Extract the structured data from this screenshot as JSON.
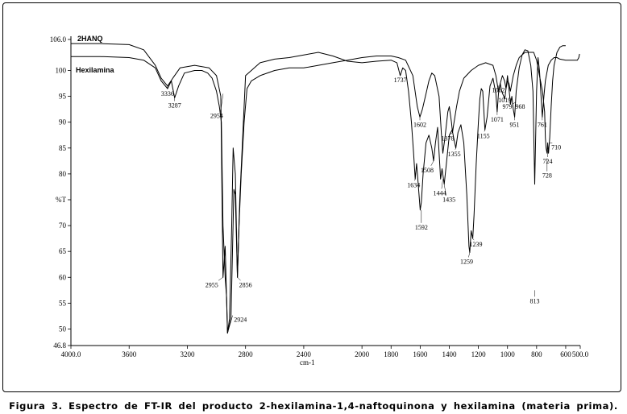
{
  "caption": "Figura 3. Espectro de FT-IR del producto 2-hexilamina-1,4-naftoquinona y hexilamina (materia prima).",
  "chart_data": {
    "type": "line",
    "xlabel": "cm-1",
    "ylabel": "%T",
    "xlim": [
      4000.0,
      500.0
    ],
    "ylim": [
      46.8,
      106.0
    ],
    "x_reversed": true,
    "grid": false,
    "x_tick_labels": [
      "4000.0",
      "3600",
      "3200",
      "2800",
      "2400",
      "2000",
      "1800",
      "1600",
      "1400",
      "1200",
      "1000",
      "800",
      "600",
      "500.0"
    ],
    "x_tick_values": [
      4000,
      3600,
      3200,
      2800,
      2400,
      2000,
      1800,
      1600,
      1400,
      1200,
      1000,
      800,
      600,
      500
    ],
    "y_tick_labels": [
      "106.0",
      "100",
      "95",
      "90",
      "85",
      "80",
      "%T",
      "70",
      "65",
      "60",
      "55",
      "50",
      "46.8"
    ],
    "y_tick_values": [
      106,
      100,
      95,
      90,
      85,
      80,
      75,
      70,
      65,
      60,
      55,
      50,
      46.8
    ],
    "series": [
      {
        "name": "2HANQ",
        "color": "#000000",
        "points": [
          [
            4000,
            105.2
          ],
          [
            3800,
            105.2
          ],
          [
            3600,
            105.0
          ],
          [
            3500,
            104.0
          ],
          [
            3420,
            101.0
          ],
          [
            3380,
            98.5
          ],
          [
            3336,
            97.0
          ],
          [
            3300,
            98.5
          ],
          [
            3250,
            100.5
          ],
          [
            3150,
            101.0
          ],
          [
            3050,
            100.5
          ],
          [
            3000,
            99.0
          ],
          [
            2970,
            95.0
          ],
          [
            2955,
            60.0
          ],
          [
            2940,
            66.0
          ],
          [
            2924,
            49.2
          ],
          [
            2900,
            52.0
          ],
          [
            2880,
            77.0
          ],
          [
            2870,
            76.0
          ],
          [
            2856,
            60.0
          ],
          [
            2840,
            75.0
          ],
          [
            2800,
            99.0
          ],
          [
            2700,
            101.5
          ],
          [
            2600,
            102.2
          ],
          [
            2500,
            102.5
          ],
          [
            2400,
            103.0
          ],
          [
            2300,
            103.5
          ],
          [
            2200,
            102.8
          ],
          [
            2100,
            101.8
          ],
          [
            2000,
            101.5
          ],
          [
            1900,
            101.8
          ],
          [
            1800,
            102.0
          ],
          [
            1760,
            101.5
          ],
          [
            1737,
            99.0
          ],
          [
            1720,
            100.5
          ],
          [
            1700,
            100.0
          ],
          [
            1680,
            96.0
          ],
          [
            1660,
            90.0
          ],
          [
            1645,
            84.0
          ],
          [
            1634,
            79.0
          ],
          [
            1625,
            82.0
          ],
          [
            1615,
            78.5
          ],
          [
            1600,
            73.0
          ],
          [
            1592,
            74.5
          ],
          [
            1580,
            80.0
          ],
          [
            1560,
            86.0
          ],
          [
            1540,
            87.5
          ],
          [
            1520,
            85.0
          ],
          [
            1508,
            82.5
          ],
          [
            1495,
            86.0
          ],
          [
            1480,
            89.0
          ],
          [
            1460,
            79.0
          ],
          [
            1450,
            81.0
          ],
          [
            1435,
            78.0
          ],
          [
            1420,
            82.0
          ],
          [
            1400,
            87.5
          ],
          [
            1380,
            88.5
          ],
          [
            1370,
            87.0
          ],
          [
            1355,
            85.0
          ],
          [
            1340,
            88.0
          ],
          [
            1320,
            89.5
          ],
          [
            1300,
            86.0
          ],
          [
            1280,
            76.0
          ],
          [
            1265,
            66.0
          ],
          [
            1259,
            64.8
          ],
          [
            1250,
            69.0
          ],
          [
            1239,
            67.5
          ],
          [
            1230,
            72.0
          ],
          [
            1215,
            82.0
          ],
          [
            1200,
            90.0
          ],
          [
            1190,
            94.5
          ],
          [
            1180,
            96.5
          ],
          [
            1170,
            96.0
          ],
          [
            1155,
            88.5
          ],
          [
            1140,
            91.0
          ],
          [
            1120,
            97.0
          ],
          [
            1100,
            98.5
          ],
          [
            1080,
            95.5
          ],
          [
            1071,
            92.0
          ],
          [
            1062,
            95.5
          ],
          [
            1050,
            97.5
          ],
          [
            1040,
            96.0
          ],
          [
            1019,
            94.5
          ],
          [
            1010,
            96.5
          ],
          [
            1000,
            99.0
          ],
          [
            990,
            96.5
          ],
          [
            979,
            93.5
          ],
          [
            970,
            95.0
          ],
          [
            960,
            92.5
          ],
          [
            951,
            91.0
          ],
          [
            940,
            96.0
          ],
          [
            920,
            100.5
          ],
          [
            900,
            103.0
          ],
          [
            880,
            104.0
          ],
          [
            860,
            103.8
          ],
          [
            840,
            101.0
          ],
          [
            825,
            96.0
          ],
          [
            813,
            78.0
          ],
          [
            800,
            96.0
          ],
          [
            790,
            102.5
          ],
          [
            780,
            100.0
          ],
          [
            761,
            91.0
          ],
          [
            750,
            95.0
          ],
          [
            740,
            98.0
          ],
          [
            730,
            99.5
          ],
          [
            720,
            101.0
          ],
          [
            700,
            102.0
          ],
          [
            680,
            102.5
          ],
          [
            660,
            102.5
          ],
          [
            640,
            102.2
          ],
          [
            600,
            102.0
          ],
          [
            560,
            102.0
          ],
          [
            520,
            102.0
          ],
          [
            510,
            102.5
          ],
          [
            505,
            103.2
          ]
        ]
      },
      {
        "name": "Hexilamina",
        "color": "#000000",
        "points": [
          [
            4000,
            102.7
          ],
          [
            3800,
            102.7
          ],
          [
            3600,
            102.5
          ],
          [
            3500,
            102.0
          ],
          [
            3420,
            100.5
          ],
          [
            3380,
            98.0
          ],
          [
            3336,
            96.5
          ],
          [
            3310,
            98.0
          ],
          [
            3287,
            94.7
          ],
          [
            3260,
            97.0
          ],
          [
            3220,
            99.5
          ],
          [
            3150,
            100.0
          ],
          [
            3100,
            100.0
          ],
          [
            3060,
            99.5
          ],
          [
            3030,
            98.5
          ],
          [
            3000,
            96.0
          ],
          [
            2980,
            93.0
          ],
          [
            2966,
            90.0
          ],
          [
            2955,
            70.0
          ],
          [
            2940,
            60.0
          ],
          [
            2930,
            56.0
          ],
          [
            2924,
            49.2
          ],
          [
            2910,
            52.0
          ],
          [
            2895,
            70.0
          ],
          [
            2885,
            85.0
          ],
          [
            2870,
            80.0
          ],
          [
            2856,
            60.0
          ],
          [
            2845,
            70.0
          ],
          [
            2830,
            80.0
          ],
          [
            2810,
            90.0
          ],
          [
            2790,
            96.5
          ],
          [
            2760,
            98.0
          ],
          [
            2700,
            99.0
          ],
          [
            2600,
            100.0
          ],
          [
            2500,
            100.5
          ],
          [
            2400,
            100.5
          ],
          [
            2300,
            101.0
          ],
          [
            2200,
            101.5
          ],
          [
            2100,
            102.0
          ],
          [
            2000,
            102.5
          ],
          [
            1900,
            102.8
          ],
          [
            1800,
            102.8
          ],
          [
            1750,
            102.5
          ],
          [
            1700,
            102.0
          ],
          [
            1650,
            99.0
          ],
          [
            1620,
            93.0
          ],
          [
            1602,
            91.0
          ],
          [
            1585,
            92.5
          ],
          [
            1560,
            95.5
          ],
          [
            1540,
            98.0
          ],
          [
            1520,
            99.5
          ],
          [
            1500,
            99.0
          ],
          [
            1470,
            95.0
          ],
          [
            1455,
            88.0
          ],
          [
            1444,
            84.0
          ],
          [
            1430,
            87.0
          ],
          [
            1410,
            92.0
          ],
          [
            1400,
            93.0
          ],
          [
            1385,
            90.0
          ],
          [
            1378,
            88.0
          ],
          [
            1370,
            89.5
          ],
          [
            1350,
            93.0
          ],
          [
            1330,
            96.0
          ],
          [
            1300,
            98.5
          ],
          [
            1250,
            100.0
          ],
          [
            1200,
            101.0
          ],
          [
            1150,
            101.5
          ],
          [
            1100,
            101.0
          ],
          [
            1080,
            99.0
          ],
          [
            1062,
            96.0
          ],
          [
            1050,
            97.5
          ],
          [
            1035,
            99.0
          ],
          [
            1020,
            98.0
          ],
          [
            1010,
            96.5
          ],
          [
            1000,
            98.0
          ],
          [
            990,
            97.5
          ],
          [
            980,
            96.0
          ],
          [
            970,
            97.5
          ],
          [
            960,
            99.0
          ],
          [
            940,
            101.0
          ],
          [
            920,
            102.5
          ],
          [
            900,
            103.0
          ],
          [
            880,
            103.5
          ],
          [
            860,
            103.5
          ],
          [
            840,
            103.5
          ],
          [
            820,
            103.5
          ],
          [
            800,
            102.0
          ],
          [
            780,
            99.0
          ],
          [
            760,
            96.0
          ],
          [
            745,
            92.0
          ],
          [
            740,
            87.0
          ],
          [
            735,
            85.0
          ],
          [
            728,
            84.0
          ],
          [
            724,
            86.0
          ],
          [
            718,
            84.0
          ],
          [
            710,
            87.0
          ],
          [
            700,
            93.0
          ],
          [
            690,
            98.0
          ],
          [
            680,
            101.0
          ],
          [
            660,
            103.5
          ],
          [
            640,
            104.5
          ],
          [
            620,
            104.8
          ],
          [
            600,
            104.8
          ]
        ]
      }
    ],
    "peak_labels": [
      {
        "text": "3336",
        "x": 3336,
        "y": 97.0
      },
      {
        "text": "3287",
        "x": 3287,
        "y": 94.7
      },
      {
        "text": "2954",
        "x": 2954,
        "y": 95.5
      },
      {
        "text": "2955",
        "x": 2955,
        "y": 60.0
      },
      {
        "text": "2856",
        "x": 2856,
        "y": 60.0
      },
      {
        "text": "2924",
        "x": 2924,
        "y": 49.2
      },
      {
        "text": "1737",
        "x": 1737,
        "y": 99.0
      },
      {
        "text": "1602",
        "x": 1602,
        "y": 91.0
      },
      {
        "text": "1634",
        "x": 1634,
        "y": 79.0
      },
      {
        "text": "1592",
        "x": 1592,
        "y": 73.0
      },
      {
        "text": "1508",
        "x": 1508,
        "y": 82.5
      },
      {
        "text": "1444",
        "x": 1444,
        "y": 79.0
      },
      {
        "text": "1435",
        "x": 1435,
        "y": 78.0
      },
      {
        "text": "1378",
        "x": 1378,
        "y": 88.0
      },
      {
        "text": "1355",
        "x": 1355,
        "y": 85.0
      },
      {
        "text": "1155",
        "x": 1155,
        "y": 88.5
      },
      {
        "text": "1239",
        "x": 1239,
        "y": 67.5
      },
      {
        "text": "1259",
        "x": 1259,
        "y": 64.8
      },
      {
        "text": "1062",
        "x": 1062,
        "y": 95.5
      },
      {
        "text": "1071",
        "x": 1071,
        "y": 92.0
      },
      {
        "text": "1019",
        "x": 1019,
        "y": 94.5
      },
      {
        "text": "979",
        "x": 979,
        "y": 93.5
      },
      {
        "text": "968",
        "x": 968,
        "y": 93.5
      },
      {
        "text": "951",
        "x": 951,
        "y": 91.0
      },
      {
        "text": "813",
        "x": 813,
        "y": 57.5
      },
      {
        "text": "761",
        "x": 761,
        "y": 91.0
      },
      {
        "text": "710",
        "x": 710,
        "y": 86.0
      },
      {
        "text": "724",
        "x": 724,
        "y": 84.5
      },
      {
        "text": "728",
        "x": 728,
        "y": 83.0
      }
    ]
  }
}
